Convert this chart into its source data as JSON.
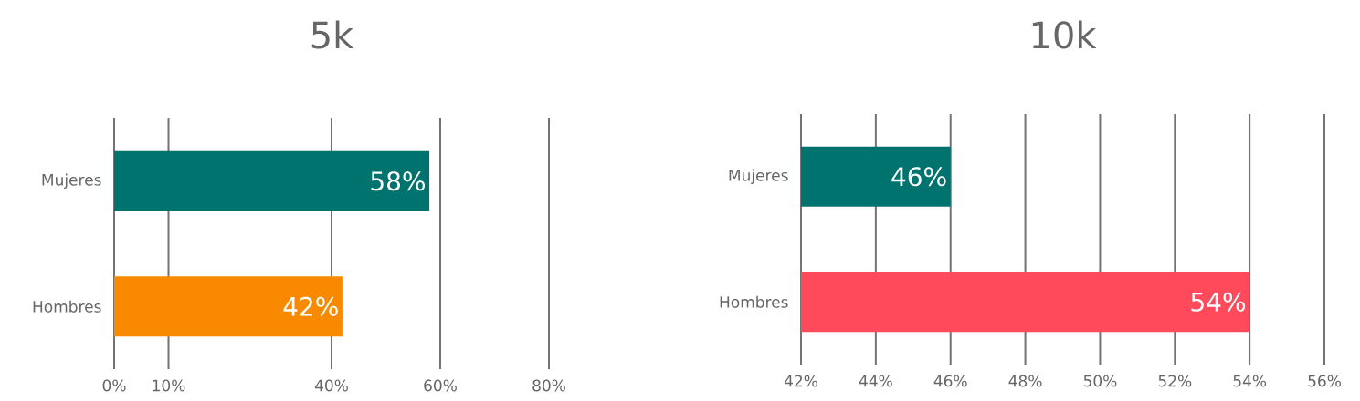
{
  "chart_data": [
    {
      "type": "bar",
      "orientation": "horizontal",
      "title": "5k",
      "categories": [
        "Mujeres",
        "Hombres"
      ],
      "values": [
        58,
        42
      ],
      "colors": [
        "#00736e",
        "#f98a00"
      ],
      "value_labels": [
        "58%",
        "42%"
      ],
      "xlim": [
        0,
        80
      ],
      "xticks": [
        {
          "value": 0,
          "label": "0%"
        },
        {
          "value": 10,
          "label": "10%"
        },
        {
          "value": 40,
          "label": "40%"
        },
        {
          "value": 60,
          "label": "60%"
        },
        {
          "value": 80,
          "label": "80%"
        }
      ],
      "grid": "x"
    },
    {
      "type": "bar",
      "orientation": "horizontal",
      "title": "10k",
      "categories": [
        "Mujeres",
        "Hombres"
      ],
      "values": [
        46,
        54
      ],
      "colors": [
        "#00736e",
        "#ff4a5c"
      ],
      "value_labels": [
        "46%",
        "54%"
      ],
      "xlim": [
        42,
        56
      ],
      "xticks": [
        {
          "value": 42,
          "label": "42%"
        },
        {
          "value": 44,
          "label": "44%"
        },
        {
          "value": 46,
          "label": "46%"
        },
        {
          "value": 48,
          "label": "48%"
        },
        {
          "value": 50,
          "label": "50%"
        },
        {
          "value": 52,
          "label": "52%"
        },
        {
          "value": 54,
          "label": "54%"
        },
        {
          "value": 56,
          "label": "56%"
        }
      ],
      "grid": "x"
    }
  ]
}
